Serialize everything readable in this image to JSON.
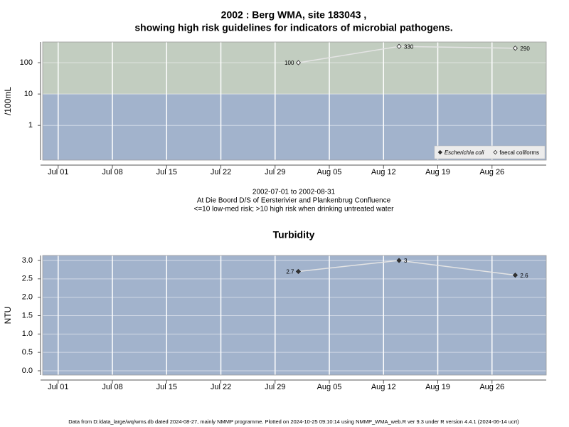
{
  "chart_data": [
    {
      "type": "line",
      "title": [
        "2002 : Berg WMA, site 183043 ,",
        "showing high risk guidelines for indicators of microbial pathogens."
      ],
      "annotations": [
        "2002-07-01 to 2002-08-31",
        "At Die Boord D/S of Eersterivier and Plankenbrug Confluence",
        "<=10 low-med risk; >10 high risk when drinking untreated water"
      ],
      "y_label": "/100mL",
      "x": [
        "2002-08-01",
        "2002-08-14",
        "2002-08-29"
      ],
      "series": [
        {
          "name": "Escherichia coli",
          "color": "#333333",
          "values": [
            null,
            null,
            null
          ]
        },
        {
          "name": "faecal coliforms",
          "color": "#ffffff",
          "values": [
            100,
            330,
            290
          ]
        }
      ],
      "xlim": [
        "2002-06-29",
        "2002-09-02"
      ],
      "xticks": [
        {
          "value": "2002-07-01",
          "label": "Jul 01"
        },
        {
          "value": "2002-07-08",
          "label": "Jul 08"
        },
        {
          "value": "2002-07-15",
          "label": "Jul 15"
        },
        {
          "value": "2002-07-22",
          "label": "Jul 22"
        },
        {
          "value": "2002-07-29",
          "label": "Jul 29"
        },
        {
          "value": "2002-08-05",
          "label": "Aug 05"
        },
        {
          "value": "2002-08-12",
          "label": "Aug 12"
        },
        {
          "value": "2002-08-19",
          "label": "Aug 19"
        },
        {
          "value": "2002-08-26",
          "label": "Aug 26"
        }
      ],
      "ylim": [
        0.078,
        457
      ],
      "yticks": [
        1,
        10,
        100
      ],
      "log_y": true,
      "grid": true,
      "background": "#a2b3cc",
      "threshold": 10,
      "above_color": "#c2cdc0",
      "line_color": "#e4e4e4",
      "legend": "bottom-right"
    },
    {
      "type": "line",
      "title": [
        "Turbidity"
      ],
      "y_label": "NTU",
      "x": [
        "2002-08-01",
        "2002-08-14",
        "2002-08-29"
      ],
      "series": [
        {
          "name": "Turbidity",
          "color": "#333333",
          "values": [
            2.7,
            3,
            2.6
          ]
        }
      ],
      "xlim": [
        "2002-06-29",
        "2002-09-02"
      ],
      "xticks": [
        {
          "value": "2002-07-01",
          "label": "Jul 01"
        },
        {
          "value": "2002-07-08",
          "label": "Jul 08"
        },
        {
          "value": "2002-07-15",
          "label": "Jul 15"
        },
        {
          "value": "2002-07-22",
          "label": "Jul 22"
        },
        {
          "value": "2002-07-29",
          "label": "Jul 29"
        },
        {
          "value": "2002-08-05",
          "label": "Aug 05"
        },
        {
          "value": "2002-08-12",
          "label": "Aug 12"
        },
        {
          "value": "2002-08-19",
          "label": "Aug 19"
        },
        {
          "value": "2002-08-26",
          "label": "Aug 26"
        }
      ],
      "ylim": [
        -0.116,
        3.135
      ],
      "yticks": [
        {
          "value": 0,
          "label": "0.0"
        },
        {
          "value": 0.5,
          "label": "0.5"
        },
        {
          "value": 1,
          "label": "1.0"
        },
        {
          "value": 1.5,
          "label": "1.5"
        },
        {
          "value": 2,
          "label": "2.0"
        },
        {
          "value": 2.5,
          "label": "2.5"
        },
        {
          "value": 3,
          "label": "3.0"
        }
      ],
      "log_y": false,
      "grid": true,
      "background": "#a2b3cc",
      "line_color": "#e4e4e4"
    }
  ],
  "footer": "Data from D:/data_large/wq/wms.db dated 2024-08-27, mainly NMMP programme. Plotted on 2024-10-25 09:10:14 using NMMP_WMA_web.R ver 9.3 under R version 4.4.1 (2024-06-14 ucrt)"
}
